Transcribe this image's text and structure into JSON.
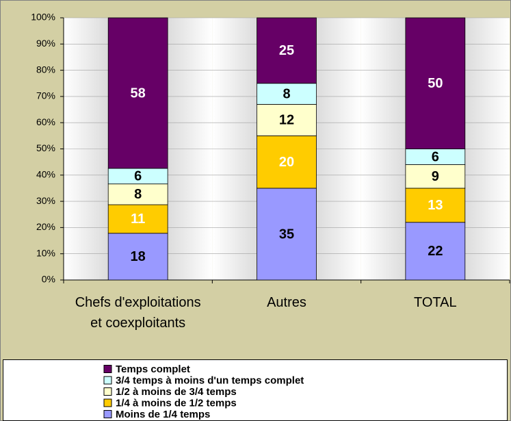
{
  "chart_data": {
    "type": "bar",
    "stacked": "percent",
    "categories": [
      "Chefs d'exploitations et coexploitants",
      "Autres",
      "TOTAL"
    ],
    "series": [
      {
        "name": "Moins de 1/4 temps",
        "color": "#9999ff",
        "label_color": "#000000",
        "values": [
          18,
          35,
          22
        ]
      },
      {
        "name": "1/4 à moins de 1/2 temps",
        "color": "#ffcc00",
        "label_color": "#ffffff",
        "values": [
          11,
          20,
          13
        ]
      },
      {
        "name": "1/2 à moins de 3/4 temps",
        "color": "#ffffcc",
        "label_color": "#000000",
        "values": [
          8,
          12,
          9
        ]
      },
      {
        "name": "3/4 temps à moins d'un temps complet",
        "color": "#ccffff",
        "label_color": "#000000",
        "values": [
          6,
          8,
          6
        ]
      },
      {
        "name": "Temps complet",
        "color": "#660066",
        "label_color": "#ffffff",
        "values": [
          58,
          25,
          50
        ]
      }
    ],
    "ylim": [
      0,
      100
    ],
    "yticks": [
      {
        "value": 0,
        "label": "0%"
      },
      {
        "value": 10,
        "label": "10%"
      },
      {
        "value": 20,
        "label": "20%"
      },
      {
        "value": 30,
        "label": "30%"
      },
      {
        "value": 40,
        "label": "40%"
      },
      {
        "value": 50,
        "label": "50%"
      },
      {
        "value": 60,
        "label": "60%"
      },
      {
        "value": 70,
        "label": "70%"
      },
      {
        "value": 80,
        "label": "80%"
      },
      {
        "value": 90,
        "label": "90%"
      },
      {
        "value": 100,
        "label": "100%"
      }
    ],
    "legend": "bottom"
  }
}
